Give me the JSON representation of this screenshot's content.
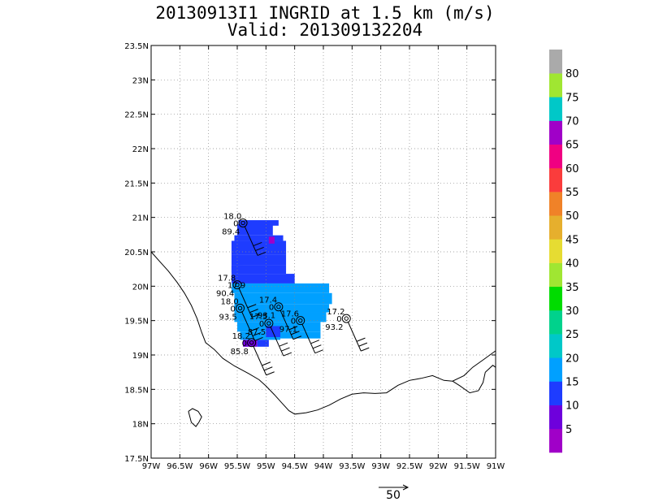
{
  "title": {
    "line1": "20130913I1 INGRID at 1.5 km (m/s)",
    "line2": "Valid: 201309132204"
  },
  "map": {
    "lon_range": [
      -97,
      -91
    ],
    "lat_range": [
      17.5,
      23.5
    ],
    "lon_ticks": [
      {
        "v": -97,
        "label": "97W"
      },
      {
        "v": -96.5,
        "label": "96.5W"
      },
      {
        "v": -96,
        "label": "96W"
      },
      {
        "v": -95.5,
        "label": "95.5W"
      },
      {
        "v": -95,
        "label": "95W"
      },
      {
        "v": -94.5,
        "label": "94.5W"
      },
      {
        "v": -94,
        "label": "94W"
      },
      {
        "v": -93.5,
        "label": "93.5W"
      },
      {
        "v": -93,
        "label": "93W"
      },
      {
        "v": -92.5,
        "label": "92.5W"
      },
      {
        "v": -92,
        "label": "92W"
      },
      {
        "v": -91.5,
        "label": "91.5W"
      },
      {
        "v": -91,
        "label": "91W"
      }
    ],
    "lat_ticks": [
      {
        "v": 17.5,
        "label": "17.5N"
      },
      {
        "v": 18,
        "label": "18N"
      },
      {
        "v": 18.5,
        "label": "18.5N"
      },
      {
        "v": 19,
        "label": "19N"
      },
      {
        "v": 19.5,
        "label": "19.5N"
      },
      {
        "v": 20,
        "label": "20N"
      },
      {
        "v": 20.5,
        "label": "20.5N"
      },
      {
        "v": 21,
        "label": "21N"
      },
      {
        "v": 21.5,
        "label": "21.5N"
      },
      {
        "v": 22,
        "label": "22N"
      },
      {
        "v": 22.5,
        "label": "22.5N"
      },
      {
        "v": 23,
        "label": "23N"
      },
      {
        "v": 23.5,
        "label": "23.5N"
      }
    ],
    "grid": "dotted",
    "coastline_color": "#000000",
    "coastline": [
      [
        -97.0,
        20.5
      ],
      [
        -96.85,
        20.36
      ],
      [
        -96.7,
        20.22
      ],
      [
        -96.55,
        20.06
      ],
      [
        -96.42,
        19.9
      ],
      [
        -96.3,
        19.72
      ],
      [
        -96.2,
        19.53
      ],
      [
        -96.12,
        19.33
      ],
      [
        -96.05,
        19.18
      ],
      [
        -95.9,
        19.08
      ],
      [
        -95.75,
        18.95
      ],
      [
        -95.55,
        18.84
      ],
      [
        -95.3,
        18.73
      ],
      [
        -95.12,
        18.64
      ],
      [
        -95.0,
        18.55
      ],
      [
        -94.85,
        18.42
      ],
      [
        -94.72,
        18.3
      ],
      [
        -94.6,
        18.19
      ],
      [
        -94.5,
        18.14
      ],
      [
        -94.3,
        18.16
      ],
      [
        -94.1,
        18.2
      ],
      [
        -93.9,
        18.27
      ],
      [
        -93.7,
        18.36
      ],
      [
        -93.5,
        18.43
      ],
      [
        -93.3,
        18.45
      ],
      [
        -93.1,
        18.44
      ],
      [
        -92.9,
        18.45
      ],
      [
        -92.7,
        18.56
      ],
      [
        -92.5,
        18.63
      ],
      [
        -92.3,
        18.66
      ],
      [
        -92.1,
        18.7
      ],
      [
        -91.9,
        18.63
      ],
      [
        -91.75,
        18.62
      ],
      [
        -91.55,
        18.7
      ],
      [
        -91.4,
        18.82
      ],
      [
        -91.2,
        18.94
      ],
      [
        -91.0,
        19.06
      ]
    ],
    "inland_coast": [
      [
        -91.75,
        18.62
      ],
      [
        -91.62,
        18.55
      ],
      [
        -91.45,
        18.45
      ],
      [
        -91.3,
        18.48
      ],
      [
        -91.22,
        18.6
      ],
      [
        -91.18,
        18.75
      ],
      [
        -91.05,
        18.85
      ],
      [
        -91.0,
        18.82
      ]
    ],
    "lagoon": [
      [
        -96.35,
        18.18
      ],
      [
        -96.28,
        18.22
      ],
      [
        -96.18,
        18.18
      ],
      [
        -96.12,
        18.1
      ],
      [
        -96.17,
        18.02
      ],
      [
        -96.22,
        17.96
      ],
      [
        -96.3,
        18.02
      ],
      [
        -96.35,
        18.18
      ]
    ]
  },
  "wind_field": {
    "cells": [
      {
        "lon": -95.48,
        "lat": 20.96,
        "w": 0.7,
        "h": 0.08,
        "v": 13
      },
      {
        "lon": -95.5,
        "lat": 20.9,
        "w": 0.62,
        "h": 0.16,
        "v": 12
      },
      {
        "lon": -95.55,
        "lat": 20.74,
        "w": 0.85,
        "h": 0.08,
        "v": 11
      },
      {
        "lon": -95.6,
        "lat": 20.66,
        "w": 0.95,
        "h": 0.2,
        "v": 12
      },
      {
        "lon": -95.6,
        "lat": 20.46,
        "w": 0.95,
        "h": 0.16,
        "v": 11
      },
      {
        "lon": -95.6,
        "lat": 20.3,
        "w": 0.95,
        "h": 0.12,
        "v": 12
      },
      {
        "lon": -95.6,
        "lat": 20.18,
        "w": 1.1,
        "h": 0.14,
        "v": 14
      },
      {
        "lon": -95.6,
        "lat": 20.04,
        "w": 1.7,
        "h": 0.14,
        "v": 16
      },
      {
        "lon": -95.55,
        "lat": 19.9,
        "w": 1.7,
        "h": 0.16,
        "v": 17
      },
      {
        "lon": -95.55,
        "lat": 19.74,
        "w": 1.65,
        "h": 0.12,
        "v": 18
      },
      {
        "lon": -95.55,
        "lat": 19.62,
        "w": 1.6,
        "h": 0.14,
        "v": 17
      },
      {
        "lon": -95.5,
        "lat": 19.48,
        "w": 1.45,
        "h": 0.14,
        "v": 18
      },
      {
        "lon": -95.45,
        "lat": 19.34,
        "w": 0.7,
        "h": 0.12,
        "v": 16
      },
      {
        "lon": -94.75,
        "lat": 19.34,
        "w": 0.7,
        "h": 0.1,
        "v": 17
      },
      {
        "lon": -95.4,
        "lat": 19.22,
        "w": 0.25,
        "h": 0.1,
        "v": 7
      },
      {
        "lon": -95.15,
        "lat": 19.22,
        "w": 0.2,
        "h": 0.1,
        "v": 13
      },
      {
        "lon": -95.0,
        "lat": 19.42,
        "w": 0.25,
        "h": 0.16,
        "v": 12
      },
      {
        "lon": -95.6,
        "lat": 20.3,
        "w": 0.2,
        "h": 0.1,
        "v": 10
      },
      {
        "lon": -94.95,
        "lat": 20.72,
        "w": 0.1,
        "h": 0.1,
        "v": 67
      }
    ]
  },
  "stations": [
    {
      "lon": -95.4,
      "lat": 20.92,
      "labels": [
        "18.0",
        "0",
        "89.4"
      ]
    },
    {
      "lon": -95.5,
      "lat": 20.02,
      "labels": [
        "17.8",
        "17.9",
        "90.4"
      ]
    },
    {
      "lon": -95.45,
      "lat": 19.68,
      "labels": [
        "18.0",
        "0",
        "93.5"
      ]
    },
    {
      "lon": -94.78,
      "lat": 19.7,
      "labels": [
        "17.4",
        "0",
        "93.1"
      ]
    },
    {
      "lon": -94.4,
      "lat": 19.5,
      "labels": [
        "17.6",
        "0",
        "97.1"
      ]
    },
    {
      "lon": -93.6,
      "lat": 19.53,
      "labels": [
        "17.2",
        "0",
        "93.2"
      ]
    },
    {
      "lon": -95.25,
      "lat": 19.18,
      "labels": [
        "18.2",
        "0",
        "85.8"
      ]
    },
    {
      "lon": -94.95,
      "lat": 19.46,
      "labels": [
        "17.5",
        "0",
        "87.5"
      ]
    }
  ],
  "colorbar": {
    "bins": [
      {
        "color": "#a000c8"
      },
      {
        "color": "#6e00dc"
      },
      {
        "color": "#1e3cff"
      },
      {
        "color": "#00a0ff"
      },
      {
        "color": "#00c8c8"
      },
      {
        "color": "#00d28c"
      },
      {
        "color": "#00dc00"
      },
      {
        "color": "#a0e632"
      },
      {
        "color": "#e6dc32"
      },
      {
        "color": "#e6af2d"
      },
      {
        "color": "#f08228"
      },
      {
        "color": "#fa3c3c"
      },
      {
        "color": "#f00082"
      },
      {
        "color": "#a000c8"
      },
      {
        "color": "#00c8c8"
      },
      {
        "color": "#a0e632"
      },
      {
        "color": "#aaaaaa"
      }
    ],
    "labels": [
      "5",
      "10",
      "15",
      "20",
      "25",
      "30",
      "35",
      "40",
      "45",
      "50",
      "55",
      "60",
      "65",
      "70",
      "75",
      "80"
    ]
  },
  "reference_vector": {
    "label": "50"
  }
}
